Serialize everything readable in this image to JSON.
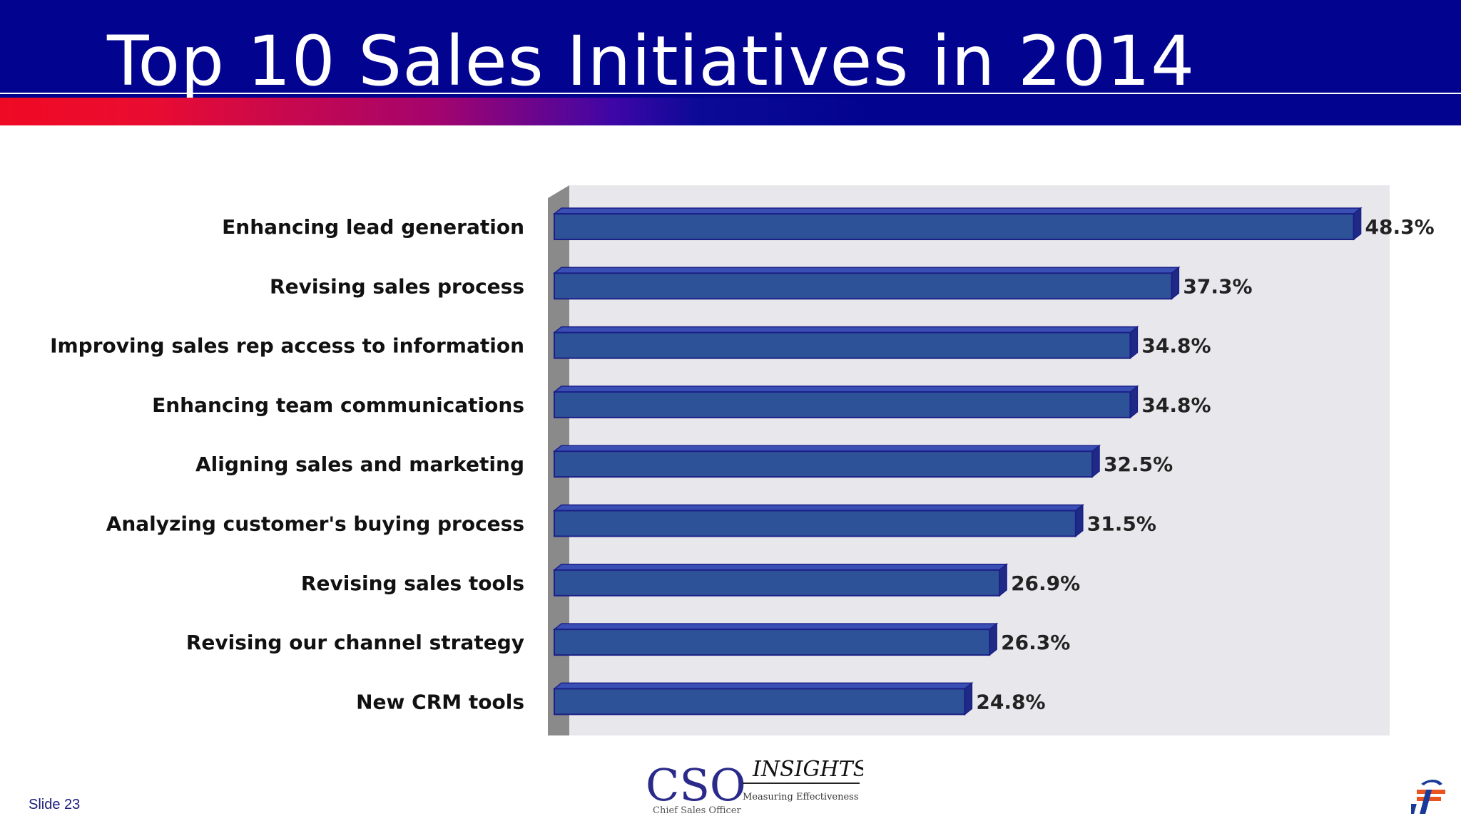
{
  "slide": {
    "title": "Top 10 Sales Initiatives in 2014",
    "slide_label": "Slide 23"
  },
  "logo": {
    "cso_text": "CSO",
    "insights_text": "INSIGHTS",
    "tagline": "Measuring  Effectiveness",
    "subtitle": "Chief  Sales  Officer"
  },
  "colors": {
    "header": "#02038f",
    "bar_fill": "#2e5297",
    "bar_edge": "#1b1f86",
    "bar_top": "#3a4fb4",
    "bar_side": "#1e2a86",
    "plot_bg": "#e8e8ec",
    "axis_wall": "#8a8a8a"
  },
  "chart_data": {
    "type": "bar",
    "orientation": "horizontal",
    "categories": [
      "Enhancing lead generation",
      "Revising sales process",
      "Improving sales rep access to  information",
      "Enhancing team communications",
      "Aligning sales and marketing",
      "Analyzing customer's buying process",
      "Revising sales tools",
      "Revising our channel strategy",
      "New CRM tools"
    ],
    "values": [
      48.3,
      37.3,
      34.8,
      34.8,
      32.5,
      31.5,
      26.9,
      26.3,
      24.8
    ],
    "data_labels": [
      "48.3%",
      "37.3%",
      "34.8%",
      "34.8%",
      "32.5%",
      "31.5%",
      "26.9%",
      "26.3%",
      "24.8%"
    ],
    "unit": "%",
    "xlim": [
      0,
      50
    ],
    "grid": false,
    "legend": "none"
  }
}
